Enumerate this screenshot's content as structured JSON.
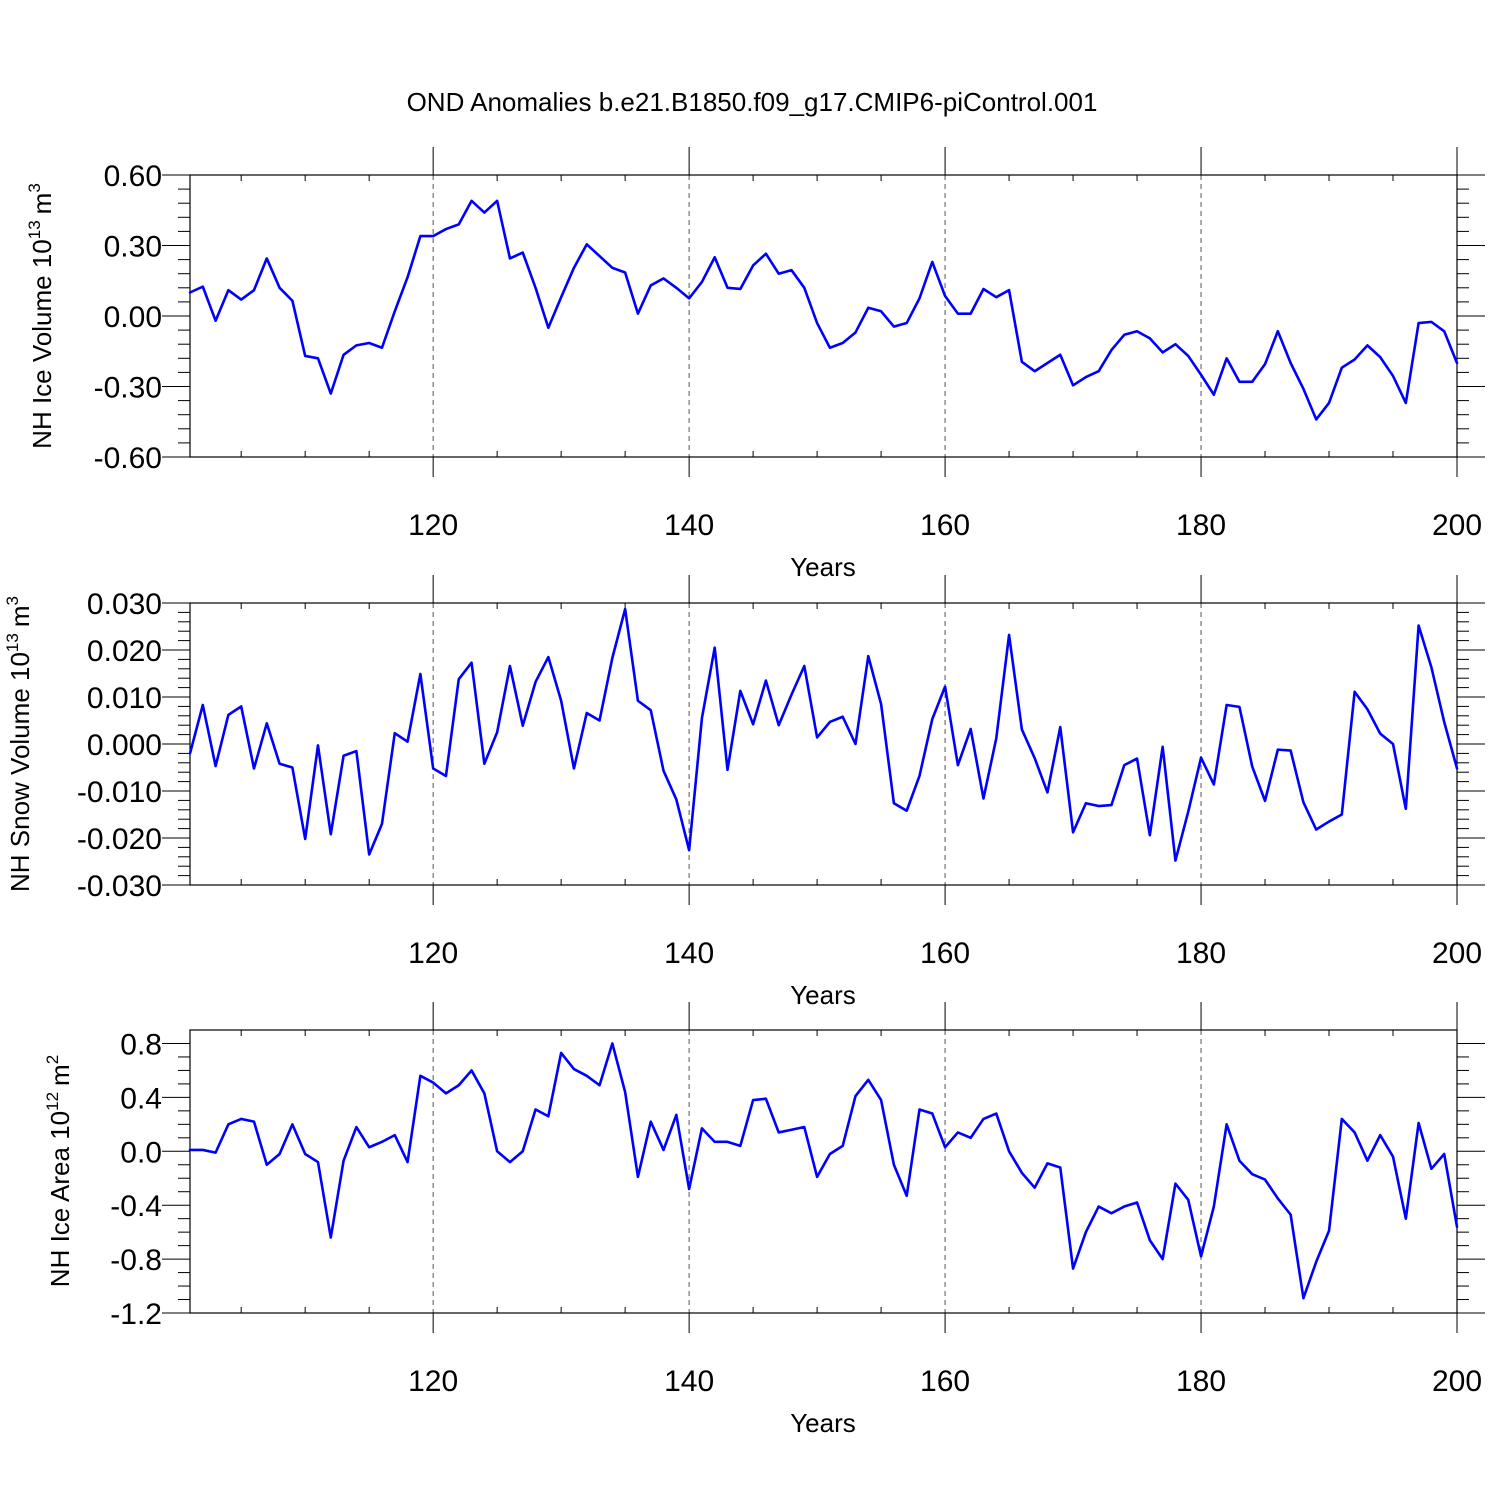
{
  "figure": {
    "title": "OND Anomalies b.e21.B1850.f09_g17.CMIP6-piControl.001",
    "line_color": "#0000ff",
    "grid_color": "#555555"
  },
  "chart_data": [
    {
      "type": "line",
      "title": "",
      "xlabel": "Years",
      "ylabel_main": "NH Ice Volume 10",
      "ylabel_exp": "13",
      "ylabel_unit": "m",
      "ylabel_unit_exp": "3",
      "xlim": [
        101,
        200
      ],
      "ylim": [
        -0.6,
        0.6
      ],
      "xticks": [
        120,
        140,
        160,
        180,
        200
      ],
      "xtick_labels": [
        "120",
        "140",
        "160",
        "180",
        "200"
      ],
      "yticks": [
        -0.6,
        -0.3,
        0.0,
        0.3,
        0.6
      ],
      "ytick_labels": [
        "-0.60",
        "-0.30",
        "0.00",
        "0.30",
        "0.60"
      ],
      "yminor_step": 0.06,
      "grid": "vertical-dashed",
      "x_start": 101,
      "series": [
        {
          "name": "NH Ice Volume",
          "values": [
            0.1,
            0.125,
            -0.02,
            0.11,
            0.07,
            0.11,
            0.245,
            0.12,
            0.065,
            -0.17,
            -0.18,
            -0.33,
            -0.165,
            -0.125,
            -0.115,
            -0.135,
            0.02,
            0.165,
            0.34,
            0.34,
            0.37,
            0.39,
            0.49,
            0.44,
            0.49,
            0.245,
            0.27,
            0.12,
            -0.05,
            0.08,
            0.205,
            0.305,
            0.255,
            0.205,
            0.185,
            0.01,
            0.13,
            0.16,
            0.12,
            0.075,
            0.145,
            0.25,
            0.12,
            0.115,
            0.215,
            0.265,
            0.18,
            0.195,
            0.12,
            -0.03,
            -0.135,
            -0.115,
            -0.07,
            0.035,
            0.02,
            -0.045,
            -0.03,
            0.075,
            0.23,
            0.085,
            0.01,
            0.01,
            0.115,
            0.08,
            0.11,
            -0.195,
            -0.235,
            -0.2,
            -0.165,
            -0.295,
            -0.26,
            -0.235,
            -0.145,
            -0.08,
            -0.065,
            -0.095,
            -0.155,
            -0.12,
            -0.17,
            -0.25,
            -0.335,
            -0.18,
            -0.28,
            -0.28,
            -0.205,
            -0.065,
            -0.2,
            -0.31,
            -0.44,
            -0.37,
            -0.22,
            -0.185,
            -0.125,
            -0.175,
            -0.255,
            -0.37,
            -0.03,
            -0.025,
            -0.065,
            -0.2
          ]
        }
      ]
    },
    {
      "type": "line",
      "title": "",
      "xlabel": "Years",
      "ylabel_main": "NH Snow Volume 10",
      "ylabel_exp": "13",
      "ylabel_unit": "m",
      "ylabel_unit_exp": "3",
      "xlim": [
        101,
        200
      ],
      "ylim": [
        -0.03,
        0.03
      ],
      "xticks": [
        120,
        140,
        160,
        180,
        200
      ],
      "xtick_labels": [
        "120",
        "140",
        "160",
        "180",
        "200"
      ],
      "yticks": [
        -0.03,
        -0.02,
        -0.01,
        0.0,
        0.01,
        0.02,
        0.03
      ],
      "ytick_labels": [
        "-0.030",
        "-0.020",
        "-0.010",
        "0.000",
        "0.010",
        "0.020",
        "0.030"
      ],
      "yminor_step": 0.002,
      "grid": "vertical-dashed",
      "x_start": 101,
      "series": [
        {
          "name": "NH Snow Volume",
          "values": [
            -0.002,
            0.0083,
            -0.0047,
            0.0062,
            0.008,
            -0.0052,
            0.0044,
            -0.0042,
            -0.005,
            -0.0202,
            -0.0003,
            -0.0192,
            -0.0025,
            -0.0015,
            -0.0235,
            -0.017,
            0.0023,
            0.0005,
            0.0149,
            -0.0052,
            -0.0068,
            0.0138,
            0.0173,
            -0.0042,
            0.0025,
            0.0166,
            0.0039,
            0.0132,
            0.0185,
            0.0092,
            -0.0052,
            0.0066,
            0.005,
            0.0183,
            0.0287,
            0.0092,
            0.0072,
            -0.0057,
            -0.0118,
            -0.0226,
            0.0055,
            0.0205,
            -0.0055,
            0.0113,
            0.0042,
            0.0135,
            0.004,
            0.0105,
            0.0166,
            0.0014,
            0.0047,
            0.0058,
            0.0,
            0.0187,
            0.0085,
            -0.0126,
            -0.0142,
            -0.0068,
            0.0053,
            0.0122,
            -0.0045,
            0.0032,
            -0.0116,
            0.0012,
            0.0232,
            0.0031,
            -0.003,
            -0.0103,
            0.0036,
            -0.0188,
            -0.0126,
            -0.0132,
            -0.013,
            -0.0045,
            -0.0031,
            -0.0194,
            -0.0006,
            -0.0248,
            -0.0144,
            -0.0029,
            -0.0086,
            0.0083,
            0.0079,
            -0.0048,
            -0.0121,
            -0.0012,
            -0.0014,
            -0.0124,
            -0.0182,
            -0.0165,
            -0.015,
            0.0111,
            0.0074,
            0.0022,
            0.0,
            -0.0138,
            0.0252,
            0.0163,
            0.0047,
            -0.0052
          ]
        }
      ]
    },
    {
      "type": "line",
      "title": "",
      "xlabel": "Years",
      "ylabel_main": "NH Ice Area 10",
      "ylabel_exp": "12",
      "ylabel_unit": "m",
      "ylabel_unit_exp": "2",
      "xlim": [
        101,
        200
      ],
      "ylim": [
        -1.2,
        0.9
      ],
      "xticks": [
        120,
        140,
        160,
        180,
        200
      ],
      "xtick_labels": [
        "120",
        "140",
        "160",
        "180",
        "200"
      ],
      "yticks": [
        -1.2,
        -0.8,
        -0.4,
        0.0,
        0.4,
        0.8
      ],
      "ytick_labels": [
        "-1.2",
        "-0.8",
        "-0.4",
        "0.0",
        "0.4",
        "0.8"
      ],
      "yminor_step": 0.1,
      "grid": "vertical-dashed",
      "x_start": 101,
      "series": [
        {
          "name": "NH Ice Area",
          "values": [
            0.01,
            0.01,
            -0.01,
            0.2,
            0.24,
            0.22,
            -0.1,
            -0.02,
            0.2,
            -0.02,
            -0.08,
            -0.64,
            -0.07,
            0.18,
            0.03,
            0.07,
            0.12,
            -0.08,
            0.56,
            0.51,
            0.43,
            0.49,
            0.6,
            0.43,
            0.0,
            -0.08,
            0.0,
            0.31,
            0.26,
            0.73,
            0.61,
            0.56,
            0.49,
            0.8,
            0.44,
            -0.19,
            0.22,
            0.01,
            0.27,
            -0.28,
            0.17,
            0.07,
            0.07,
            0.04,
            0.38,
            0.39,
            0.14,
            0.16,
            0.18,
            -0.19,
            -0.02,
            0.04,
            0.41,
            0.53,
            0.38,
            -0.1,
            -0.33,
            0.31,
            0.28,
            0.03,
            0.14,
            0.1,
            0.24,
            0.28,
            0.0,
            -0.16,
            -0.27,
            -0.09,
            -0.12,
            -0.87,
            -0.6,
            -0.41,
            -0.46,
            -0.41,
            -0.38,
            -0.66,
            -0.8,
            -0.24,
            -0.36,
            -0.78,
            -0.41,
            0.2,
            -0.07,
            -0.17,
            -0.21,
            -0.35,
            -0.47,
            -1.09,
            -0.82,
            -0.59,
            0.24,
            0.14,
            -0.07,
            0.12,
            -0.04,
            -0.5,
            0.21,
            -0.13,
            -0.02,
            -0.56
          ]
        }
      ]
    }
  ]
}
